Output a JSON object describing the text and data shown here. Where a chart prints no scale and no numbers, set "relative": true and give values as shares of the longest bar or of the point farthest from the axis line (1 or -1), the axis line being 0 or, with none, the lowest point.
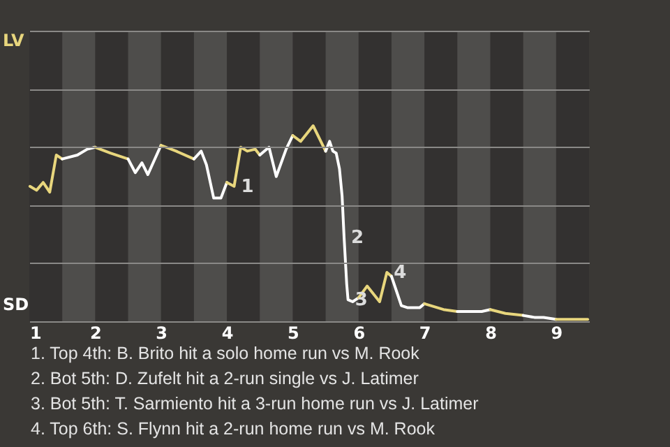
{
  "chart_data": {
    "type": "line",
    "relative": true,
    "xlim": [
      1,
      9.5
    ],
    "xticks": [
      1,
      2,
      3,
      4,
      5,
      6,
      7,
      8,
      9
    ],
    "grid": "y",
    "series": [
      {
        "color": "#e8d67d",
        "x": [
          1.01,
          1.11,
          1.21,
          1.31,
          1.41,
          1.5
        ],
        "values": [
          0.69,
          0.67,
          0.71,
          0.66,
          0.85,
          0.83
        ]
      },
      {
        "color": "#ffffff",
        "x": [
          1.5,
          1.73,
          1.88,
          2.0
        ],
        "values": [
          0.83,
          0.85,
          0.88,
          0.89
        ]
      },
      {
        "color": "#e8d67d",
        "x": [
          2.0,
          2.23,
          2.5
        ],
        "values": [
          0.89,
          0.86,
          0.83
        ]
      },
      {
        "color": "#ffffff",
        "x": [
          2.5,
          2.61,
          2.71,
          2.8,
          3.0
        ],
        "values": [
          0.83,
          0.76,
          0.81,
          0.75,
          0.9
        ]
      },
      {
        "color": "#e8d67d",
        "x": [
          3.0,
          3.23,
          3.5
        ],
        "values": [
          0.9,
          0.87,
          0.83
        ]
      },
      {
        "color": "#ffffff",
        "x": [
          3.5,
          3.61,
          3.69,
          3.8,
          3.91,
          4.0
        ],
        "values": [
          0.83,
          0.87,
          0.8,
          0.63,
          0.63,
          0.71
        ]
      },
      {
        "color": "#e8d67d",
        "x": [
          4.0,
          4.11,
          4.21,
          4.31,
          4.43,
          4.5
        ],
        "values": [
          0.71,
          0.69,
          0.89,
          0.87,
          0.88,
          0.85
        ]
      },
      {
        "color": "#ffffff",
        "x": [
          4.5,
          4.64,
          4.75,
          4.9,
          5.0
        ],
        "values": [
          0.85,
          0.89,
          0.74,
          0.88,
          0.95
        ]
      },
      {
        "color": "#e8d67d",
        "x": [
          5.0,
          5.12,
          5.31,
          5.5
        ],
        "values": [
          0.95,
          0.92,
          1.0,
          0.87
        ]
      },
      {
        "color": "#ffffff",
        "x": [
          5.5,
          5.56,
          5.61,
          5.66,
          5.71,
          5.75,
          5.78,
          5.82,
          5.84,
          5.91,
          6.0
        ],
        "values": [
          0.87,
          0.92,
          0.87,
          0.86,
          0.78,
          0.64,
          0.43,
          0.19,
          0.11,
          0.1,
          0.12
        ]
      },
      {
        "color": "#e8d67d",
        "x": [
          6.0,
          6.13,
          6.32,
          6.43,
          6.5
        ],
        "values": [
          0.12,
          0.18,
          0.1,
          0.25,
          0.23
        ]
      },
      {
        "color": "#ffffff",
        "x": [
          6.5,
          6.58,
          6.65,
          6.74,
          6.93,
          7.0
        ],
        "values": [
          0.23,
          0.15,
          0.08,
          0.07,
          0.07,
          0.09
        ]
      },
      {
        "color": "#e8d67d",
        "x": [
          7.0,
          7.29,
          7.5
        ],
        "values": [
          0.09,
          0.06,
          0.05
        ]
      },
      {
        "color": "#ffffff",
        "x": [
          7.5,
          7.87,
          8.0
        ],
        "values": [
          0.05,
          0.05,
          0.06
        ]
      },
      {
        "color": "#e8d67d",
        "x": [
          8.0,
          8.23,
          8.5
        ],
        "values": [
          0.06,
          0.04,
          0.03
        ]
      },
      {
        "color": "#ffffff",
        "x": [
          8.5,
          8.67,
          8.81,
          9.0
        ],
        "values": [
          0.03,
          0.02,
          0.02,
          0.01
        ]
      },
      {
        "color": "#e8d67d",
        "x": [
          9.0,
          9.48
        ],
        "values": [
          0.01,
          0.01
        ]
      }
    ],
    "bands": [
      {
        "axis": "x",
        "from": 1.5,
        "to": 2,
        "color": "#4e4d4b"
      },
      {
        "axis": "x",
        "from": 2.5,
        "to": 3,
        "color": "#4e4d4b"
      },
      {
        "axis": "x",
        "from": 3.5,
        "to": 4,
        "color": "#4e4d4b"
      },
      {
        "axis": "x",
        "from": 4.5,
        "to": 5,
        "color": "#4e4d4b"
      },
      {
        "axis": "x",
        "from": 5.5,
        "to": 6,
        "color": "#4e4d4b"
      },
      {
        "axis": "x",
        "from": 6.5,
        "to": 7,
        "color": "#4e4d4b"
      },
      {
        "axis": "x",
        "from": 7.5,
        "to": 8,
        "color": "#4e4d4b"
      },
      {
        "axis": "x",
        "from": 8.5,
        "to": 9,
        "color": "#4e4d4b"
      }
    ],
    "annotations": [
      "LV",
      "SD",
      {
        "text": "1",
        "x": 4.11,
        "y": 0.69
      },
      {
        "text": "2",
        "x": 5.78,
        "y": 0.43
      },
      {
        "text": "3",
        "x": 5.84,
        "y": 0.11
      },
      {
        "text": "4",
        "x": 6.43,
        "y": 0.25
      },
      "1. Top 4th: B. Brito hit a solo home run vs M. Rook",
      "2. Bot 5th: D. Zufelt hit a 2-run single vs J. Latimer",
      "3. Bot 5th: T. Sarmiento hit a 3-run home run vs J. Latimer",
      "4. Top 6th: S. Flynn hit a 2-run home run vs M. Rook"
    ]
  }
}
